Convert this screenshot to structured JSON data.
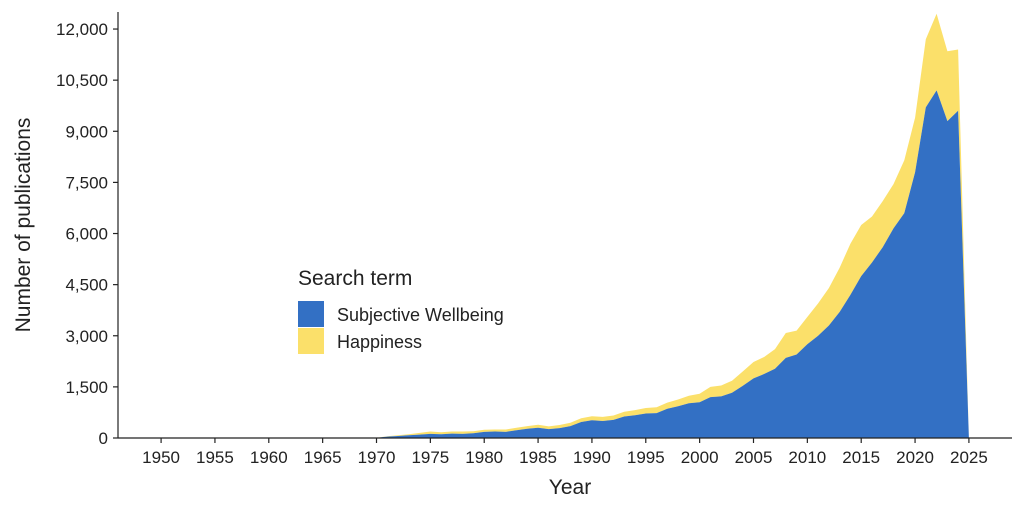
{
  "chart_data": {
    "type": "area",
    "stacked": true,
    "title": "",
    "xlabel": "Year",
    "ylabel": "Number of publications",
    "xlim": [
      1946,
      2029
    ],
    "ylim": [
      0,
      12500
    ],
    "x_ticks": [
      1950,
      1955,
      1960,
      1965,
      1970,
      1975,
      1980,
      1985,
      1990,
      1995,
      2000,
      2005,
      2010,
      2015,
      2020,
      2025
    ],
    "x_tick_labels": [
      "1950",
      "1955",
      "1960",
      "1965",
      "1970",
      "1975",
      "1980",
      "1985",
      "1990",
      "1995",
      "2000",
      "2005",
      "2010",
      "2015",
      "2020",
      "2025"
    ],
    "y_ticks": [
      0,
      1500,
      3000,
      4500,
      6000,
      7500,
      9000,
      10500,
      12000
    ],
    "y_tick_labels": [
      "0",
      "1,500",
      "3,000",
      "4,500",
      "6,000",
      "7,500",
      "9,000",
      "10,500",
      "12,000"
    ],
    "grid": false,
    "legend": {
      "title": "Search term",
      "placement": "center-left"
    },
    "x": [
      1970,
      1971,
      1972,
      1973,
      1974,
      1975,
      1976,
      1977,
      1978,
      1979,
      1980,
      1981,
      1982,
      1983,
      1984,
      1985,
      1986,
      1987,
      1988,
      1989,
      1990,
      1991,
      1992,
      1993,
      1994,
      1995,
      1996,
      1997,
      1998,
      1999,
      2000,
      2001,
      2002,
      2003,
      2004,
      2005,
      2006,
      2007,
      2008,
      2009,
      2010,
      2011,
      2012,
      2013,
      2014,
      2015,
      2016,
      2017,
      2018,
      2019,
      2020,
      2021,
      2022,
      2023,
      2024,
      2025
    ],
    "series": [
      {
        "name": "Subjective Wellbeing",
        "color": "#3370c4",
        "values": [
          5,
          40,
          60,
          80,
          100,
          120,
          110,
          130,
          120,
          140,
          180,
          190,
          180,
          230,
          270,
          300,
          260,
          290,
          350,
          470,
          520,
          500,
          530,
          630,
          670,
          720,
          730,
          860,
          930,
          1020,
          1050,
          1200,
          1220,
          1330,
          1530,
          1750,
          1880,
          2030,
          2350,
          2450,
          2750,
          3000,
          3300,
          3700,
          4200,
          4750,
          5150,
          5600,
          6150,
          6600,
          7800,
          9700,
          10200,
          9300,
          9600,
          0
        ]
      },
      {
        "name": "Happiness",
        "color": "#fbe06a",
        "values": [
          0,
          10,
          20,
          30,
          50,
          70,
          60,
          60,
          70,
          60,
          60,
          60,
          70,
          70,
          80,
          90,
          80,
          90,
          100,
          110,
          120,
          120,
          130,
          140,
          150,
          160,
          170,
          180,
          200,
          220,
          250,
          300,
          320,
          350,
          420,
          480,
          500,
          580,
          730,
          700,
          800,
          950,
          1100,
          1300,
          1500,
          1500,
          1350,
          1350,
          1300,
          1550,
          1600,
          2000,
          2250,
          2050,
          1800,
          0
        ]
      }
    ]
  }
}
